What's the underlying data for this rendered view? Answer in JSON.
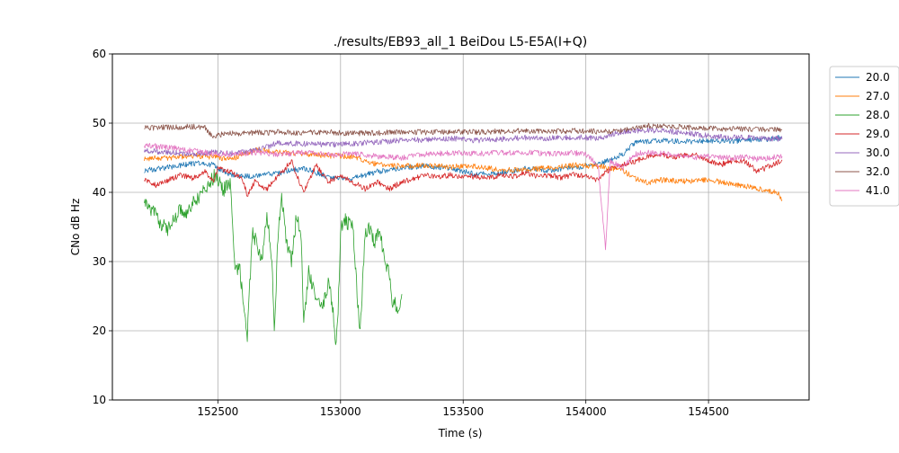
{
  "chart_data": {
    "type": "line",
    "title": "./results/EB93_all_1 BeiDou L5-E5A(I+Q)",
    "xlabel": "Time (s)",
    "ylabel": "CNo dB Hz",
    "xlim": [
      152070,
      154910
    ],
    "ylim": [
      10,
      60
    ],
    "xticks": [
      152500,
      153000,
      153500,
      154000,
      154500
    ],
    "yticks": [
      10,
      20,
      30,
      40,
      50,
      60
    ],
    "grid": true,
    "legend_position": "outside-right-top",
    "series": [
      {
        "name": "20.0",
        "color": "#1f77b4",
        "x": [
          152200,
          152300,
          152400,
          152480,
          152550,
          152650,
          152750,
          152850,
          152950,
          153050,
          153150,
          153250,
          153350,
          153450,
          153550,
          153650,
          153750,
          153850,
          153950,
          154050,
          154150,
          154200,
          154300,
          154400,
          154500,
          154600,
          154700,
          154800
        ],
        "y": [
          43.2,
          43.6,
          44.2,
          44.0,
          42.5,
          42.3,
          42.8,
          43.5,
          42.2,
          42.0,
          43.0,
          43.6,
          43.8,
          43.5,
          42.6,
          42.8,
          43.4,
          43.2,
          43.6,
          44.0,
          45.5,
          47.2,
          47.5,
          47.3,
          47.5,
          47.4,
          47.6,
          47.9
        ]
      },
      {
        "name": "27.0",
        "color": "#ff7f0e",
        "x": [
          152200,
          152300,
          152400,
          152480,
          152550,
          152650,
          152750,
          152850,
          152950,
          153050,
          153150,
          153250,
          153350,
          153450,
          153550,
          153650,
          153750,
          153850,
          153950,
          154050,
          154150,
          154200,
          154250,
          154300,
          154400,
          154500,
          154600,
          154700,
          154780,
          154800
        ],
        "y": [
          44.9,
          45.0,
          45.3,
          45.1,
          44.7,
          46.2,
          45.8,
          45.6,
          45.3,
          45.2,
          44.0,
          43.8,
          43.9,
          43.7,
          43.8,
          43.2,
          43.3,
          43.5,
          43.9,
          43.8,
          43.2,
          42.0,
          41.4,
          41.8,
          41.6,
          41.8,
          41.2,
          40.6,
          40.0,
          38.9
        ]
      },
      {
        "name": "28.0",
        "color": "#2ca02c",
        "x": [
          152200,
          152230,
          152260,
          152290,
          152320,
          152350,
          152380,
          152400,
          152430,
          152460,
          152490,
          152520,
          152550,
          152570,
          152590,
          152610,
          152620,
          152640,
          152660,
          152680,
          152700,
          152720,
          152730,
          152745,
          152760,
          152780,
          152800,
          152820,
          152840,
          152850,
          152870,
          152890,
          152910,
          152930,
          152950,
          152970,
          152980,
          152990,
          153000,
          153020,
          153050,
          153070,
          153080,
          153100,
          153120,
          153140,
          153160,
          153180,
          153200,
          153210,
          153220,
          153240,
          153250
        ],
        "y": [
          39.3,
          37.5,
          36.0,
          34.5,
          36.0,
          37.5,
          37.0,
          38.8,
          39.5,
          41.0,
          42.5,
          40.2,
          41.5,
          29.0,
          28.5,
          22.5,
          19.0,
          34.0,
          32.5,
          30.0,
          36.5,
          30.5,
          19.4,
          34.0,
          39.0,
          33.0,
          30.0,
          36.5,
          34.0,
          21.0,
          28.5,
          26.0,
          24.5,
          23.5,
          27.0,
          23.0,
          18.2,
          22.0,
          34.5,
          36.0,
          35.0,
          24.0,
          20.0,
          34.0,
          35.0,
          32.5,
          34.8,
          30.0,
          28.0,
          23.0,
          24.5,
          22.5,
          25.3
        ]
      },
      {
        "name": "29.0",
        "color": "#d62728",
        "x": [
          152200,
          152250,
          152300,
          152350,
          152400,
          152450,
          152480,
          152500,
          152550,
          152600,
          152620,
          152650,
          152700,
          152750,
          152800,
          152850,
          152900,
          152950,
          153000,
          153050,
          153100,
          153150,
          153200,
          153250,
          153300,
          153350,
          153400,
          153450,
          153500,
          153550,
          153600,
          153650,
          153700,
          153750,
          153800,
          153850,
          153900,
          153950,
          154000,
          154050,
          154100,
          154150,
          154200,
          154250,
          154300,
          154350,
          154400,
          154450,
          154500,
          154550,
          154600,
          154650,
          154700,
          154750,
          154800
        ],
        "y": [
          42.0,
          41.0,
          41.8,
          42.5,
          42.0,
          43.0,
          41.5,
          43.5,
          43.0,
          42.0,
          39.5,
          41.5,
          40.5,
          42.5,
          44.5,
          40.0,
          44.0,
          41.5,
          42.5,
          41.5,
          40.5,
          41.5,
          40.5,
          41.5,
          42.0,
          42.5,
          42.3,
          42.5,
          42.2,
          42.3,
          42.0,
          42.5,
          42.3,
          42.8,
          42.3,
          42.5,
          42.1,
          42.6,
          42.3,
          41.8,
          43.5,
          44.0,
          44.5,
          45.2,
          45.5,
          45.0,
          45.3,
          45.5,
          44.5,
          44.0,
          44.6,
          44.5,
          43.0,
          43.8,
          44.7
        ]
      },
      {
        "name": "30.0",
        "color": "#9467bd",
        "x": [
          152200,
          152300,
          152400,
          152480,
          152550,
          152650,
          152750,
          152850,
          152950,
          153050,
          153150,
          153250,
          153350,
          153450,
          153550,
          153650,
          153750,
          153850,
          153950,
          154050,
          154150,
          154250,
          154350,
          154450,
          154550,
          154650,
          154750,
          154800
        ],
        "y": [
          46.0,
          45.8,
          45.5,
          45.8,
          45.6,
          46.0,
          47.2,
          47.0,
          46.9,
          47.0,
          47.3,
          47.5,
          47.6,
          47.8,
          47.5,
          47.7,
          47.9,
          47.8,
          48.0,
          47.8,
          48.8,
          49.0,
          48.8,
          48.4,
          48.0,
          47.9,
          47.8,
          47.7
        ]
      },
      {
        "name": "32.0",
        "color": "#8c564b",
        "x": [
          152200,
          152300,
          152400,
          152450,
          152480,
          152500,
          152550,
          152650,
          152750,
          152850,
          152950,
          153050,
          153150,
          153250,
          153350,
          153450,
          153550,
          153650,
          153750,
          153850,
          153950,
          154050,
          154150,
          154250,
          154350,
          154450,
          154550,
          154650,
          154750,
          154800
        ],
        "y": [
          49.3,
          49.4,
          49.5,
          49.3,
          48.0,
          48.3,
          48.5,
          48.6,
          48.7,
          48.6,
          48.7,
          48.5,
          48.6,
          48.7,
          48.7,
          48.8,
          48.7,
          48.8,
          48.9,
          48.8,
          48.9,
          48.8,
          48.9,
          49.6,
          49.5,
          49.3,
          49.2,
          49.1,
          49.1,
          49.0
        ]
      },
      {
        "name": "41.0",
        "color": "#e377c2",
        "x": [
          152200,
          152300,
          152400,
          152480,
          152550,
          152650,
          152750,
          152850,
          152950,
          153050,
          153150,
          153250,
          153350,
          153450,
          153550,
          153650,
          153750,
          153850,
          153950,
          154000,
          154050,
          154080,
          154100,
          154150,
          154200,
          154250,
          154300,
          154350,
          154400,
          154450,
          154500,
          154550,
          154600,
          154650,
          154700,
          154750,
          154800
        ],
        "y": [
          46.8,
          46.5,
          46.0,
          45.6,
          45.5,
          45.8,
          45.5,
          45.8,
          45.4,
          45.6,
          45.2,
          45.0,
          45.5,
          45.7,
          45.6,
          45.7,
          45.8,
          45.6,
          45.7,
          45.5,
          44.0,
          31.8,
          44.5,
          43.5,
          45.5,
          45.8,
          45.6,
          45.5,
          45.3,
          45.0,
          45.2,
          45.0,
          45.0,
          45.1,
          44.8,
          45.0,
          45.2
        ]
      }
    ]
  }
}
